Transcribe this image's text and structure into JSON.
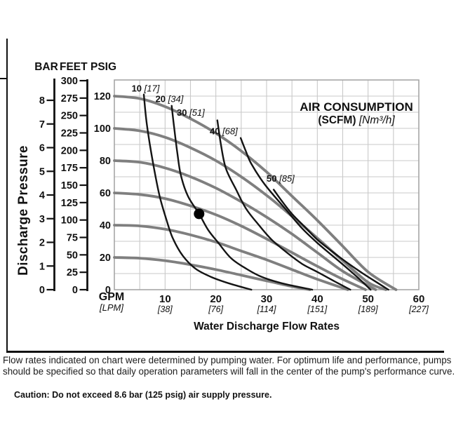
{
  "figure": {
    "y_axis_title": "Discharge Pressure",
    "x_axis": {
      "unit_primary": "GPM",
      "unit_secondary": "[LPM]",
      "title": "Water Discharge Flow Rates",
      "ticks": [
        {
          "gpm": 10,
          "lpm": "[38]"
        },
        {
          "gpm": 20,
          "lpm": "[76]"
        },
        {
          "gpm": 30,
          "lpm": "[114]"
        },
        {
          "gpm": 40,
          "lpm": "[151]"
        },
        {
          "gpm": 50,
          "lpm": "[189]"
        },
        {
          "gpm": 60,
          "lpm": "[227]"
        }
      ]
    },
    "pressure_scales": [
      {
        "name": "BAR",
        "ticks": [
          8,
          7,
          6,
          5,
          4,
          3,
          2,
          1,
          0
        ]
      },
      {
        "name": "FEET",
        "ticks": [
          300,
          275,
          250,
          225,
          200,
          175,
          150,
          125,
          100,
          75,
          50,
          25,
          0
        ]
      },
      {
        "name": "PSIG",
        "ticks": [
          120,
          100,
          80,
          60,
          40,
          20,
          0
        ]
      }
    ],
    "legend": {
      "line1": "AIR CONSUMPTION",
      "line2_bold": "(SCFM)",
      "line2_italic": "[Nm³/h]"
    }
  },
  "chart_data": {
    "type": "line",
    "title": "AIR CONSUMPTION (SCFM) [Nm³/h]",
    "xlabel": "Water Discharge Flow Rates",
    "x_unit": "GPM [LPM]",
    "x_range": [
      0,
      60
    ],
    "grid": {
      "x_step_gpm": 5,
      "y_step_psig": 10
    },
    "y_axes": [
      {
        "unit": "PSIG",
        "range": [
          0,
          130
        ],
        "ticks": [
          0,
          20,
          40,
          60,
          80,
          100,
          120
        ]
      },
      {
        "unit": "FEET",
        "range": [
          0,
          300
        ],
        "ticks": [
          0,
          25,
          50,
          75,
          100,
          125,
          150,
          175,
          200,
          225,
          250,
          275,
          300
        ]
      },
      {
        "unit": "BAR",
        "range": [
          0,
          8.6
        ],
        "ticks": [
          0,
          1,
          2,
          3,
          4,
          5,
          6,
          7,
          8
        ]
      }
    ],
    "water_curves": [
      {
        "start_psig": 120,
        "points_gpm_psig": [
          [
            0,
            120
          ],
          [
            5,
            118.5
          ],
          [
            10,
            113.5
          ],
          [
            15,
            106
          ],
          [
            20,
            97
          ],
          [
            25,
            86
          ],
          [
            30,
            73
          ],
          [
            35,
            58
          ],
          [
            40,
            43
          ],
          [
            45,
            27
          ],
          [
            50,
            11
          ],
          [
            55.5,
            0
          ]
        ]
      },
      {
        "start_psig": 100,
        "points_gpm_psig": [
          [
            0,
            100
          ],
          [
            5,
            98.5
          ],
          [
            10,
            94.5
          ],
          [
            15,
            88
          ],
          [
            20,
            80
          ],
          [
            25,
            70
          ],
          [
            30,
            58.5
          ],
          [
            35,
            45.5
          ],
          [
            40,
            32
          ],
          [
            45,
            18
          ],
          [
            50,
            4.5
          ],
          [
            53.5,
            0
          ]
        ]
      },
      {
        "start_psig": 80,
        "points_gpm_psig": [
          [
            0,
            80
          ],
          [
            5,
            79
          ],
          [
            10,
            75.5
          ],
          [
            15,
            70
          ],
          [
            20,
            63
          ],
          [
            25,
            54.5
          ],
          [
            30,
            45
          ],
          [
            35,
            34.5
          ],
          [
            40,
            23
          ],
          [
            45,
            11.5
          ],
          [
            51.5,
            0
          ]
        ]
      },
      {
        "start_psig": 60,
        "points_gpm_psig": [
          [
            0,
            60
          ],
          [
            5,
            59
          ],
          [
            10,
            56.5
          ],
          [
            15,
            52
          ],
          [
            20,
            46.5
          ],
          [
            25,
            39.5
          ],
          [
            30,
            31.5
          ],
          [
            35,
            23
          ],
          [
            40,
            14.5
          ],
          [
            45,
            6.5
          ],
          [
            49.5,
            0
          ]
        ]
      },
      {
        "start_psig": 40,
        "points_gpm_psig": [
          [
            0,
            40
          ],
          [
            5,
            39.5
          ],
          [
            10,
            37.5
          ],
          [
            15,
            34
          ],
          [
            20,
            29.5
          ],
          [
            25,
            24
          ],
          [
            30,
            18.5
          ],
          [
            35,
            12.5
          ],
          [
            40,
            6.5
          ],
          [
            46,
            0
          ]
        ]
      },
      {
        "start_psig": 20,
        "points_gpm_psig": [
          [
            0,
            20
          ],
          [
            5,
            19.5
          ],
          [
            10,
            18
          ],
          [
            15,
            15.5
          ],
          [
            20,
            12.5
          ],
          [
            25,
            9
          ],
          [
            30,
            5.5
          ],
          [
            35,
            2
          ],
          [
            38.5,
            0
          ]
        ]
      }
    ],
    "air_curves": [
      {
        "scfm": 10,
        "nm3h": 17,
        "label": "10",
        "label_conv": "[17]",
        "label_pos_gpm_psig": [
          3.4,
          122.8
        ],
        "points_gpm_psig": [
          [
            5.8,
            121
          ],
          [
            6.3,
            105
          ],
          [
            7,
            90
          ],
          [
            8,
            72
          ],
          [
            9,
            57
          ],
          [
            10.2,
            44
          ],
          [
            11.5,
            32
          ],
          [
            13.5,
            21
          ],
          [
            16,
            13
          ],
          [
            19,
            8
          ],
          [
            22.5,
            4
          ],
          [
            27,
            0
          ]
        ]
      },
      {
        "scfm": 20,
        "nm3h": 34,
        "label": "20",
        "label_conv": "[34]",
        "label_pos_gpm_psig": [
          8.1,
          116.3
        ],
        "points_gpm_psig": [
          [
            11.3,
            114
          ],
          [
            11.8,
            100
          ],
          [
            12.4,
            85
          ],
          [
            13.1,
            71
          ],
          [
            14.5,
            58
          ],
          [
            16.7,
            47
          ],
          [
            18.5,
            37
          ],
          [
            20.5,
            29
          ],
          [
            23,
            19.5
          ],
          [
            26,
            13
          ],
          [
            29,
            8
          ],
          [
            33,
            4
          ],
          [
            39,
            0
          ]
        ]
      },
      {
        "scfm": 30,
        "nm3h": 51,
        "label": "30",
        "label_conv": "[51]",
        "label_pos_gpm_psig": [
          12.3,
          107.8
        ],
        "points_gpm_psig": [
          [
            20.3,
            105
          ],
          [
            21,
            90
          ],
          [
            22,
            75
          ],
          [
            24,
            62
          ],
          [
            26,
            50
          ],
          [
            28.5,
            40
          ],
          [
            31,
            31
          ],
          [
            34,
            23
          ],
          [
            37,
            16
          ],
          [
            40,
            11
          ],
          [
            43.5,
            5
          ],
          [
            46.5,
            0
          ]
        ]
      },
      {
        "scfm": 40,
        "nm3h": 68,
        "label": "40",
        "label_conv": "[68]",
        "label_pos_gpm_psig": [
          18.8,
          96.3
        ],
        "points_gpm_psig": [
          [
            24.9,
            94
          ],
          [
            25.9,
            86
          ],
          [
            27,
            78
          ],
          [
            29.7,
            65
          ],
          [
            34,
            49
          ],
          [
            37,
            38
          ],
          [
            40,
            29
          ],
          [
            43,
            21
          ],
          [
            46,
            13
          ],
          [
            48.5,
            6
          ],
          [
            50.5,
            0
          ]
        ]
      },
      {
        "scfm": 50,
        "nm3h": 85,
        "label": "50",
        "label_conv": "[85]",
        "label_pos_gpm_psig": [
          30.0,
          67
        ],
        "points_gpm_psig": [
          [
            31.4,
            62
          ],
          [
            33,
            55
          ],
          [
            35,
            47
          ],
          [
            37.5,
            39
          ],
          [
            40,
            31
          ],
          [
            43,
            23.5
          ],
          [
            46,
            16.5
          ],
          [
            49,
            10
          ],
          [
            52,
            4
          ],
          [
            54,
            0
          ]
        ]
      }
    ],
    "operating_point": {
      "gpm": 16.7,
      "psig": 47
    }
  },
  "footer": {
    "note_lines": [
      "Flow rates indicated on chart were determined by pumping water. For optimum life and performance, pumps",
      "should be specified so that daily operation parameters will fall in the center of the pump's performance curve."
    ],
    "caution": "Caution: Do not exceed 8.6 bar (125 psig) air supply pressure."
  },
  "colors": {
    "water_curve": "#7f7f7f",
    "air_curve": "#141414",
    "grid": "#c9c9c9",
    "plot_border": "#a6a6a6",
    "text": "#111111"
  }
}
